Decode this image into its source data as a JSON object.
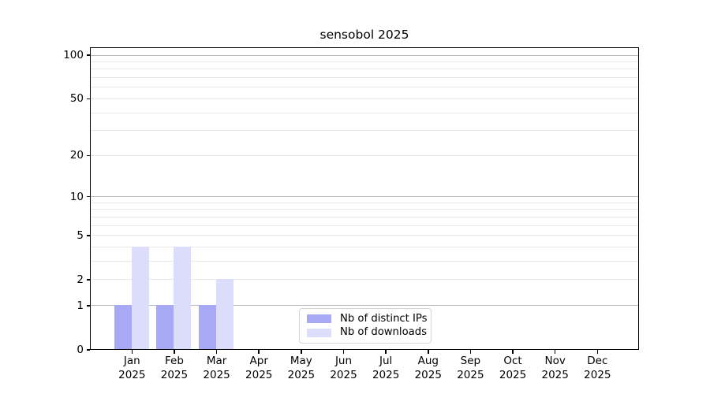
{
  "chart_data": {
    "type": "bar",
    "title": "sensobol 2025",
    "x_categories": [
      "Jan",
      "Feb",
      "Mar",
      "Apr",
      "May",
      "Jun",
      "Jul",
      "Aug",
      "Sep",
      "Oct",
      "Nov",
      "Dec"
    ],
    "x_year": "2025",
    "series": [
      {
        "name": "Nb of distinct IPs",
        "color": "#a7a9f4",
        "values": [
          1,
          1,
          1,
          0,
          0,
          0,
          0,
          0,
          0,
          0,
          0,
          0
        ]
      },
      {
        "name": "Nb of downloads",
        "color": "#dbddfa",
        "values": [
          4,
          4,
          2,
          0,
          0,
          0,
          0,
          0,
          0,
          0,
          0,
          0
        ]
      }
    ],
    "y_scale": "log10(1+x)",
    "ylim": [
      0,
      113
    ],
    "y_ticks_labeled": [
      0,
      1,
      2,
      5,
      10,
      20,
      50,
      100
    ],
    "y_grid_major": [
      1,
      10,
      100
    ],
    "y_grid_minor": [
      2,
      3,
      4,
      5,
      6,
      7,
      8,
      9,
      20,
      30,
      40,
      50,
      60,
      70,
      80,
      90
    ],
    "grid": true,
    "legend_position": "inside-bottom-center"
  },
  "colors": {
    "background": "#ffffff",
    "axis": "#000000",
    "text": "#000000",
    "grid_major": "#b9b9b9",
    "grid_minor": "#e9e9e9",
    "legend_border": "#d5d5d5",
    "legend_background": "#ffffff"
  }
}
